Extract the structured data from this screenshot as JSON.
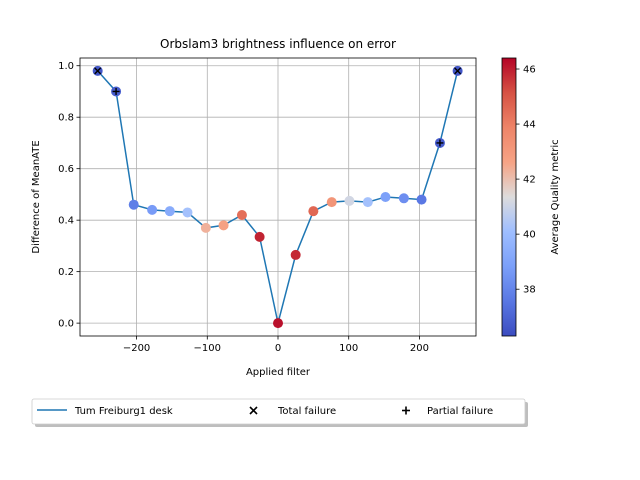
{
  "chart_data": {
    "type": "scatter",
    "title": "Orbslam3 brightness influence on error",
    "xlabel": "Applied filter",
    "ylabel": "Difference of MeanATE",
    "xlim": [
      -280,
      280
    ],
    "ylim": [
      -0.05,
      1.03
    ],
    "xticks": [
      -200,
      -100,
      0,
      100,
      200
    ],
    "xtick_labels": [
      "−200",
      "−100",
      "0",
      "100",
      "200"
    ],
    "yticks": [
      0.0,
      0.2,
      0.4,
      0.6,
      0.8,
      1.0
    ],
    "ytick_labels": [
      "0.0",
      "0.2",
      "0.4",
      "0.6",
      "0.8",
      "1.0"
    ],
    "grid": true,
    "line_color": "#1f77b4",
    "series": [
      {
        "name": "Tum Freiburg1 desk",
        "x": [
          -255,
          -229,
          -204,
          -178,
          -153,
          -128,
          -102,
          -77,
          -51,
          -26,
          0,
          25,
          50,
          76,
          101,
          127,
          152,
          178,
          203,
          229,
          254
        ],
        "y": [
          0.98,
          0.9,
          0.46,
          0.44,
          0.435,
          0.43,
          0.37,
          0.38,
          0.42,
          0.335,
          0.0,
          0.265,
          0.435,
          0.47,
          0.475,
          0.47,
          0.49,
          0.485,
          0.48,
          0.7,
          0.98
        ],
        "quality": [
          36.6,
          36.8,
          37.8,
          38.7,
          39.3,
          40.2,
          42.3,
          42.7,
          44.4,
          45.9,
          46.2,
          45.8,
          44.6,
          43.2,
          41.1,
          40.2,
          38.9,
          38.3,
          37.6,
          36.8,
          36.6
        ],
        "failure": [
          "total",
          "partial",
          "none",
          "none",
          "none",
          "none",
          "none",
          "none",
          "none",
          "none",
          "none",
          "none",
          "none",
          "none",
          "none",
          "none",
          "none",
          "none",
          "none",
          "partial",
          "total"
        ]
      }
    ],
    "colorbar": {
      "label": "Average Quality metric",
      "min": 36.3,
      "max": 46.4,
      "ticks": [
        38,
        40,
        42,
        44,
        46
      ],
      "tick_labels": [
        "38",
        "40",
        "42",
        "44",
        "46"
      ],
      "colormap": "coolwarm"
    },
    "legend": {
      "placement": "below-left",
      "entries": [
        {
          "label": "Tum Freiburg1 desk",
          "marker": "line"
        },
        {
          "label": "Total failure",
          "marker": "x"
        },
        {
          "label": "Partial failure",
          "marker": "+"
        }
      ]
    }
  }
}
